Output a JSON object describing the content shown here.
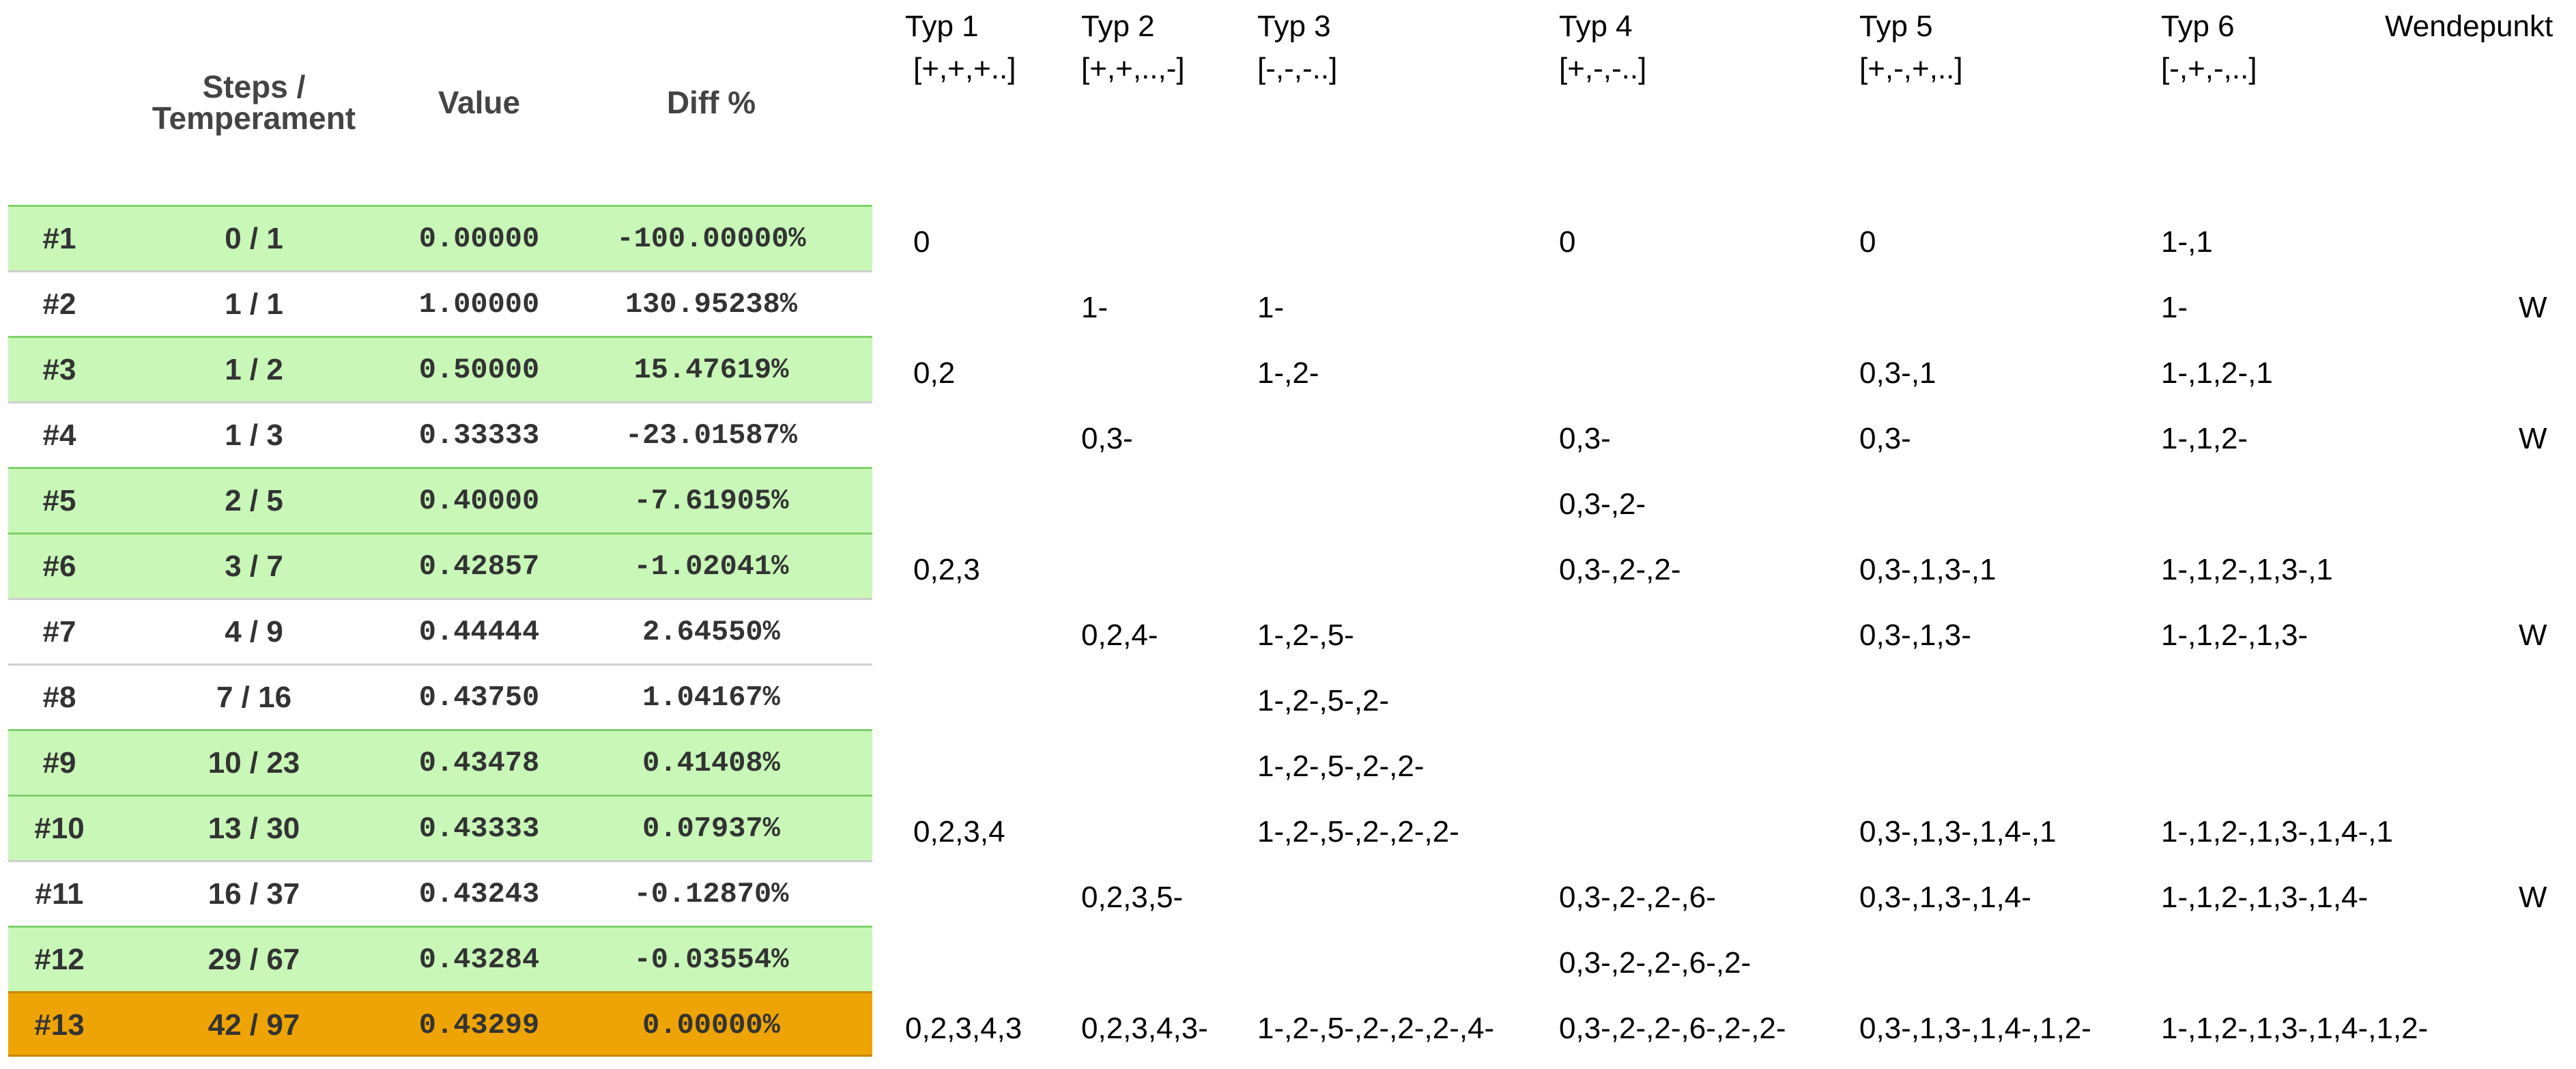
{
  "table": {
    "headers": {
      "steps_line1": "Steps /",
      "steps_line2": "Temperament",
      "value": "Value",
      "diff": "Diff %"
    },
    "rows": [
      {
        "id": "#1",
        "steps": "0 / 1",
        "value": "0.00000",
        "diff": "-100.00000%",
        "shade": "green"
      },
      {
        "id": "#2",
        "steps": "1 / 1",
        "value": "1.00000",
        "diff": "130.95238%",
        "shade": "white"
      },
      {
        "id": "#3",
        "steps": "1 / 2",
        "value": "0.50000",
        "diff": "15.47619%",
        "shade": "green"
      },
      {
        "id": "#4",
        "steps": "1 / 3",
        "value": "0.33333",
        "diff": "-23.01587%",
        "shade": "white"
      },
      {
        "id": "#5",
        "steps": "2 / 5",
        "value": "0.40000",
        "diff": "-7.61905%",
        "shade": "green"
      },
      {
        "id": "#6",
        "steps": "3 / 7",
        "value": "0.42857",
        "diff": "-1.02041%",
        "shade": "green"
      },
      {
        "id": "#7",
        "steps": "4 / 9",
        "value": "0.44444",
        "diff": "2.64550%",
        "shade": "white"
      },
      {
        "id": "#8",
        "steps": "7 / 16",
        "value": "0.43750",
        "diff": "1.04167%",
        "shade": "white"
      },
      {
        "id": "#9",
        "steps": "10 / 23",
        "value": "0.43478",
        "diff": "0.41408%",
        "shade": "green"
      },
      {
        "id": "#10",
        "steps": "13 / 30",
        "value": "0.43333",
        "diff": "0.07937%",
        "shade": "green"
      },
      {
        "id": "#11",
        "steps": "16 / 37",
        "value": "0.43243",
        "diff": "-0.12870%",
        "shade": "white"
      },
      {
        "id": "#12",
        "steps": "29 / 67",
        "value": "0.43284",
        "diff": "-0.03554%",
        "shade": "green"
      },
      {
        "id": "#13",
        "steps": "42 / 97",
        "value": "0.43299",
        "diff": "0.00000%",
        "shade": "orange"
      }
    ]
  },
  "right_table": {
    "columns": [
      {
        "title": "Typ 1",
        "pattern": "[+,+,+..]"
      },
      {
        "title": "Typ 2",
        "pattern": "[+,+,..,-]"
      },
      {
        "title": "Typ 3",
        "pattern": "[-,-,-..]"
      },
      {
        "title": "Typ 4",
        "pattern": "[+,-,-..]"
      },
      {
        "title": "Typ 5",
        "pattern": "[+,-,+,..]"
      },
      {
        "title": "Typ 6",
        "pattern": "[-,+,-,..]"
      },
      {
        "title": "Wendepunkt",
        "pattern": ""
      }
    ],
    "rows": [
      [
        "0",
        "",
        "",
        "0",
        "0",
        "1-,1",
        ""
      ],
      [
        "",
        "1-",
        "1-",
        "",
        "",
        "1-",
        "W"
      ],
      [
        "0,2",
        "",
        "1-,2-",
        "",
        "0,3-,1",
        "1-,1,2-,1",
        ""
      ],
      [
        "",
        "0,3-",
        "",
        "0,3-",
        "0,3-",
        "1-,1,2-",
        "W"
      ],
      [
        "",
        "",
        "",
        "0,3-,2-",
        "",
        "",
        ""
      ],
      [
        "0,2,3",
        "",
        "",
        "0,3-,2-,2-",
        "0,3-,1,3-,1",
        "1-,1,2-,1,3-,1",
        ""
      ],
      [
        "",
        "0,2,4-",
        "1-,2-,5-",
        "",
        "0,3-,1,3-",
        "1-,1,2-,1,3-",
        "W"
      ],
      [
        "",
        "",
        "1-,2-,5-,2-",
        "",
        "",
        "",
        ""
      ],
      [
        "",
        "",
        "1-,2-,5-,2-,2-",
        "",
        "",
        "",
        ""
      ],
      [
        "0,2,3,4",
        "",
        "1-,2-,5-,2-,2-,2-",
        "",
        "0,3-,1,3-,1,4-,1",
        "1-,1,2-,1,3-,1,4-,1",
        ""
      ],
      [
        "",
        "0,2,3,5-",
        "",
        "0,3-,2-,2-,6-",
        "0,3-,1,3-,1,4-",
        "1-,1,2-,1,3-,1,4-",
        "W"
      ],
      [
        "",
        "",
        "",
        "0,3-,2-,2-,6-,2-",
        "",
        "",
        ""
      ],
      [
        "0,2,3,4,3",
        "0,2,3,4,3-",
        "1-,2-,5-,2-,2-,2-,4-",
        "0,3-,2-,2-,6-,2-,2-",
        "0,3-,1,3-,1,4-,1,2-",
        "1-,1,2-,1,3-,1,4-,1,2-",
        ""
      ]
    ]
  }
}
